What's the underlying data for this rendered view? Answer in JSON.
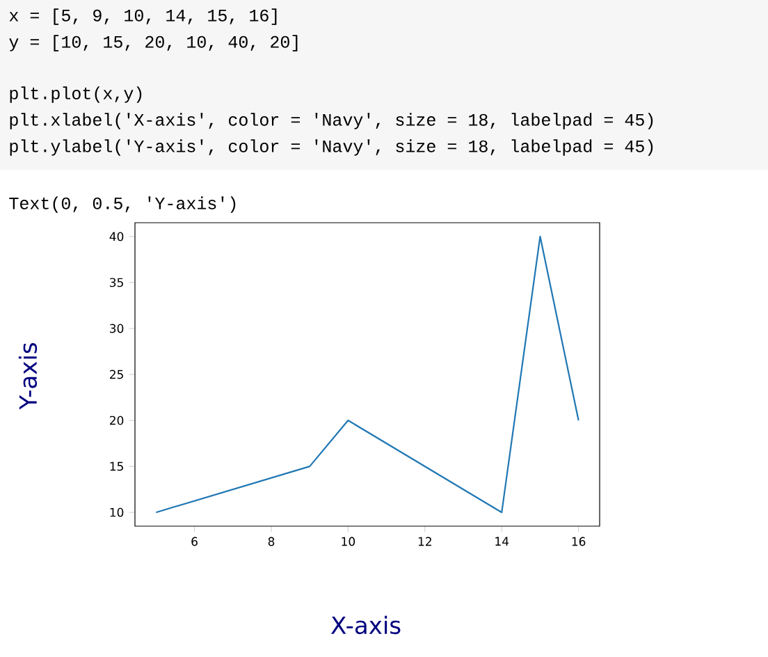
{
  "chart_data": {
    "type": "line",
    "x": [
      5,
      9,
      10,
      14,
      15,
      16
    ],
    "values": [
      10,
      15,
      20,
      10,
      40,
      20
    ],
    "color": "#1f77b4",
    "xlabel": "X-axis",
    "ylabel": "Y-axis",
    "xlim": [
      4.45,
      16.55
    ],
    "ylim": [
      8.5,
      41.5
    ],
    "xticks": [
      6,
      8,
      10,
      12,
      14,
      16
    ],
    "yticks": [
      10,
      15,
      20,
      25,
      30,
      35,
      40
    ],
    "annotations": [
      "x = [5, 9, 10, 14, 15, 16]",
      "y = [10, 15, 20, 10, 40, 20]",
      "plt.plot(x,y)",
      "plt.xlabel('X-axis', color = 'Navy', size = 18, labelpad = 45)",
      "plt.ylabel('Y-axis', color = 'Navy', size = 18, labelpad = 45)",
      "Text(0, 0.5, 'Y-axis')"
    ]
  }
}
